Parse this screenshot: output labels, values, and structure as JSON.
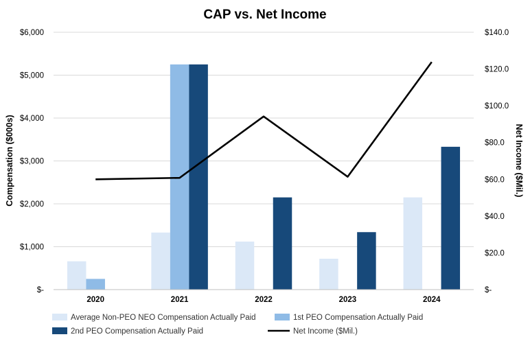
{
  "chart_data": {
    "type": "bar",
    "title": "CAP vs. Net Income",
    "categories": [
      "2020",
      "2021",
      "2022",
      "2023",
      "2024"
    ],
    "ylabel": "Compensation ($000s)",
    "ylim": [
      0,
      6000
    ],
    "yticks": [
      0,
      1000,
      2000,
      3000,
      4000,
      5000,
      6000
    ],
    "ytick_labels": [
      "$-",
      "$1,000",
      "$2,000",
      "$3,000",
      "$4,000",
      "$5,000",
      "$6,000"
    ],
    "y2label": "Net Income ($Mil.)",
    "y2lim": [
      0,
      140
    ],
    "y2ticks": [
      0,
      20,
      40,
      60,
      80,
      100,
      120,
      140
    ],
    "y2tick_labels": [
      "$-",
      "$20.0",
      "$40.0",
      "$60.0",
      "$80.0",
      "$100.0",
      "$120.0",
      "$140.0"
    ],
    "grid": true,
    "legend_position": "bottom",
    "series": [
      {
        "name": "Average Non-PEO NEO Compensation Actually Paid",
        "kind": "bar",
        "axis": "left",
        "color": "#dbe8f7",
        "values": [
          660,
          1330,
          1120,
          720,
          2150
        ]
      },
      {
        "name": "1st PEO Compensation Actually Paid",
        "kind": "bar",
        "axis": "left",
        "color": "#8fbbe6",
        "values": [
          250,
          5250,
          0,
          0,
          0
        ]
      },
      {
        "name": "2nd PEO Compensation Actually Paid",
        "kind": "bar",
        "axis": "left",
        "color": "#17497a",
        "values": [
          0,
          5250,
          2150,
          1340,
          3330
        ]
      },
      {
        "name": "Net Income ($Mil.)",
        "kind": "line",
        "axis": "right",
        "color": "#000000",
        "values": [
          60.0,
          60.8,
          94.2,
          61.4,
          123.8
        ]
      }
    ]
  }
}
